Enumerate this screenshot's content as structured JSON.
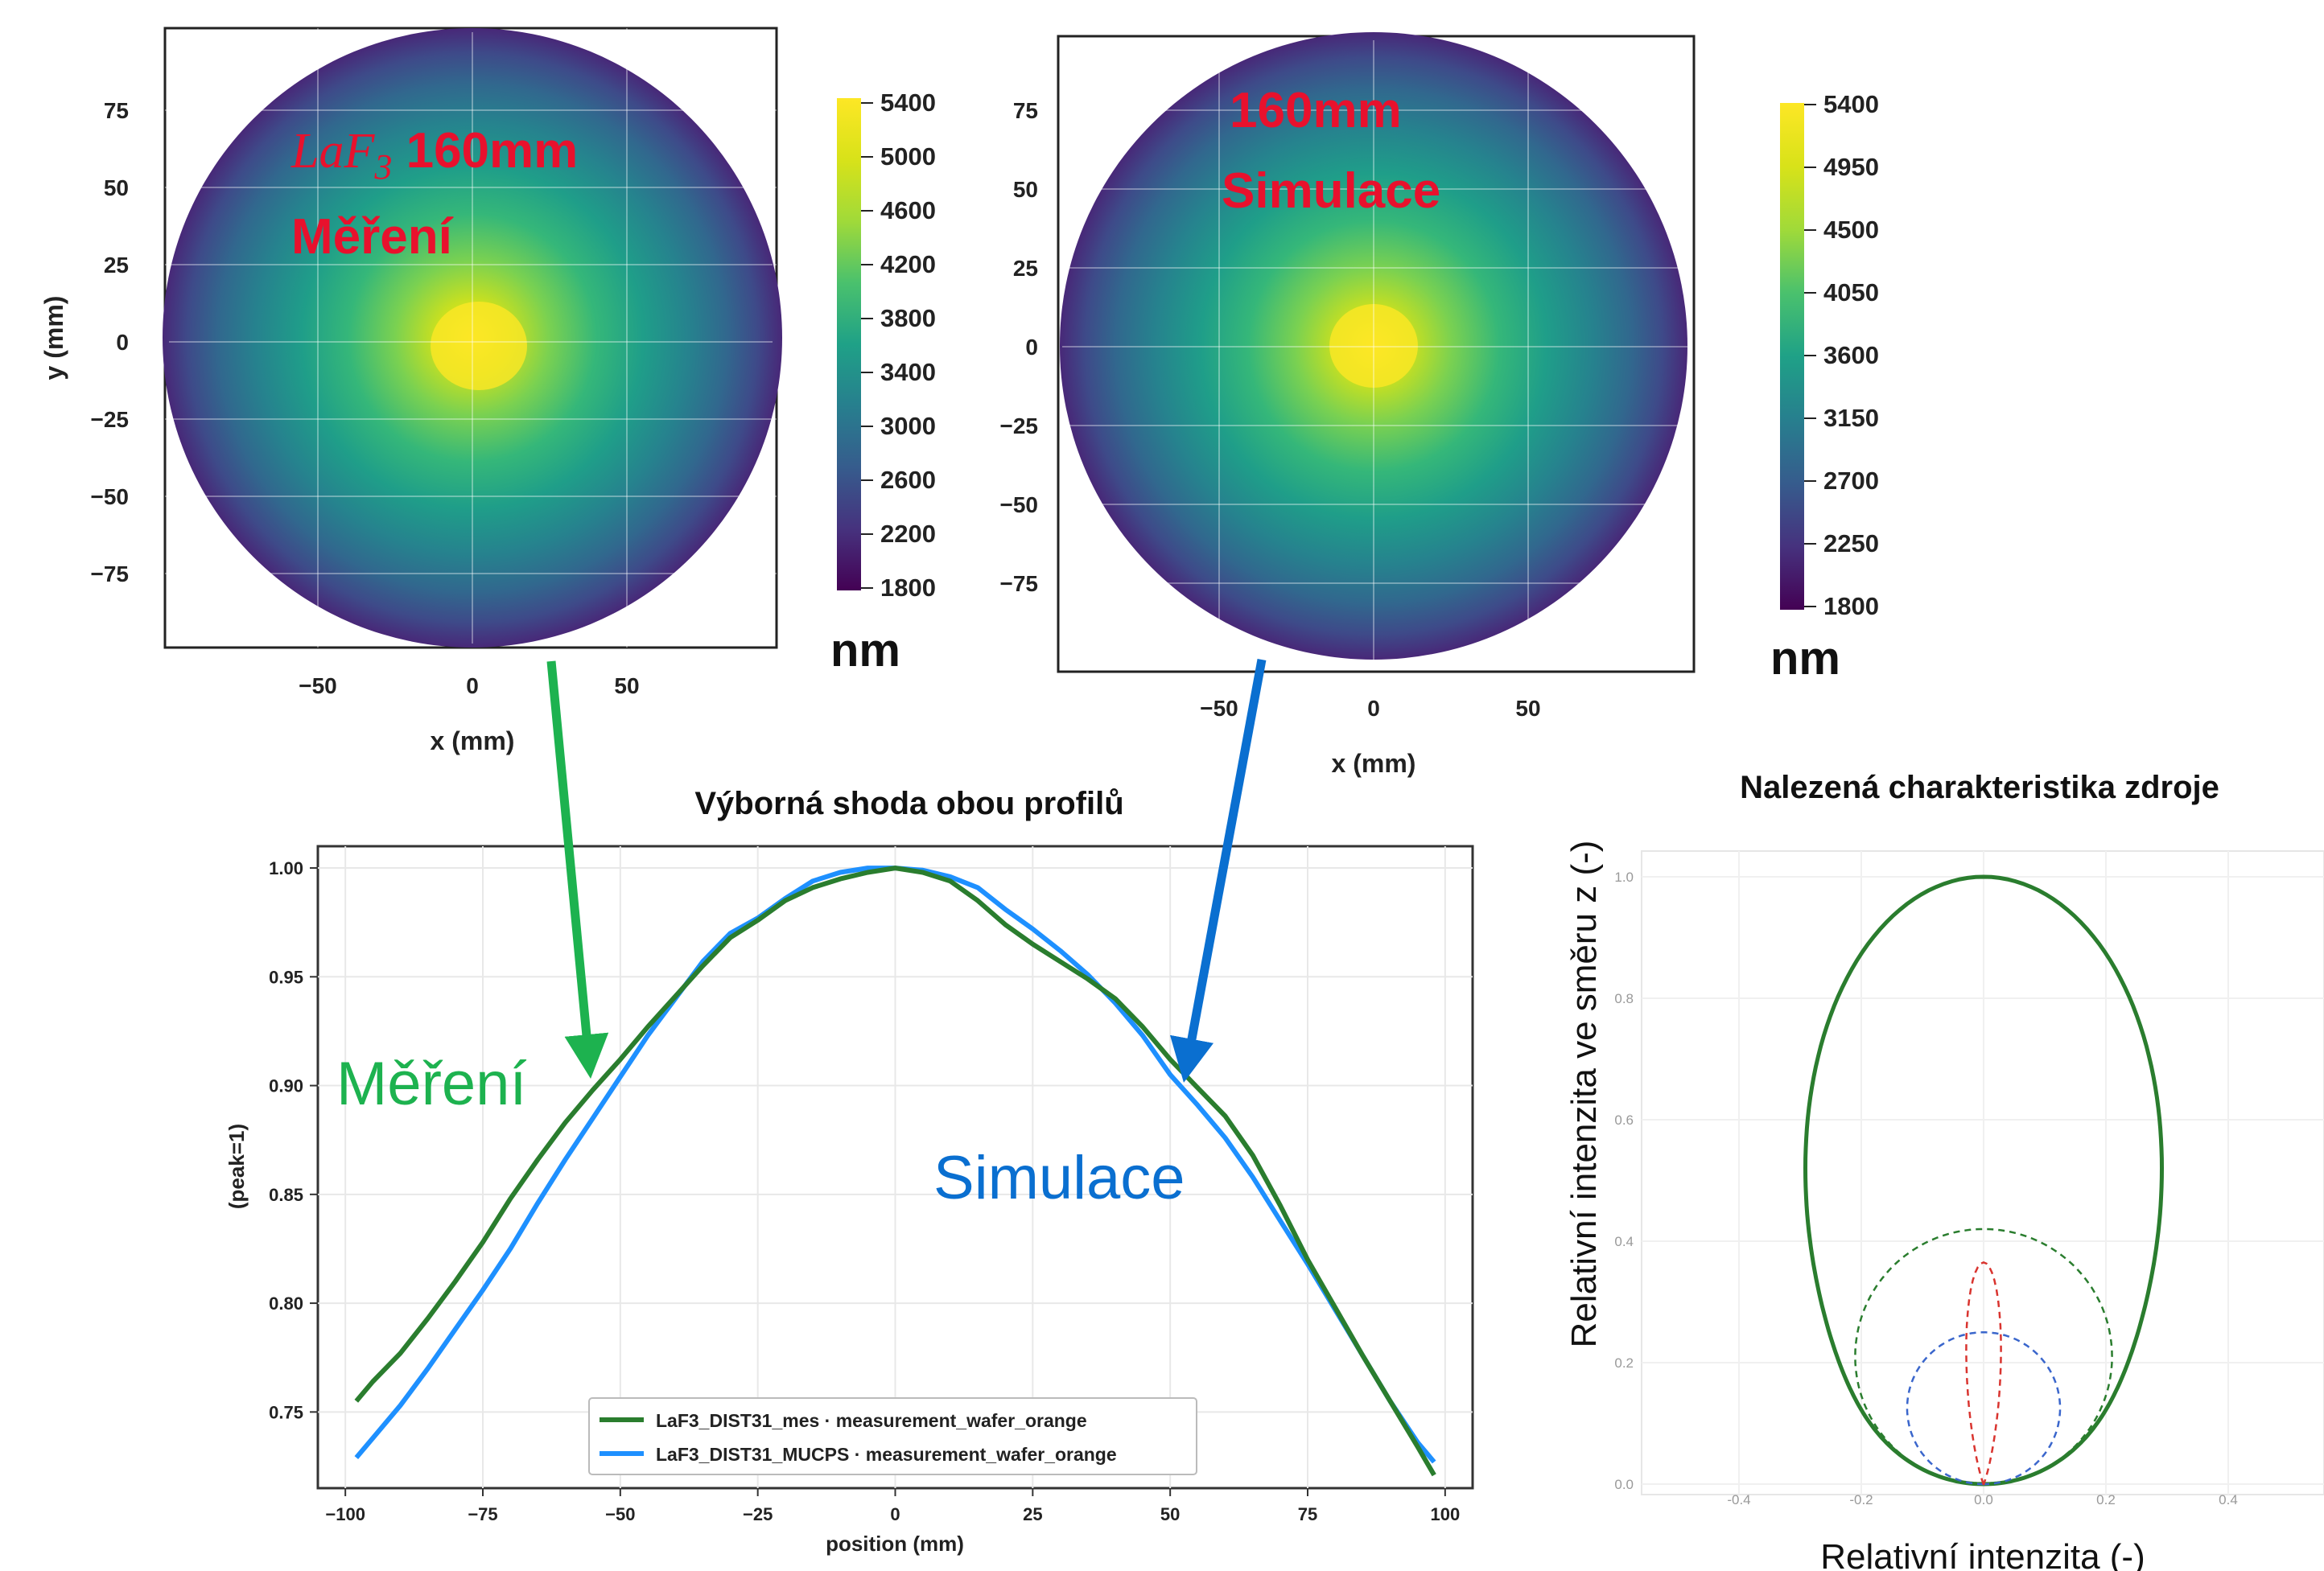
{
  "colors": {
    "red": "#e8112d",
    "green": "#1db24f",
    "blue": "#0a6fd0",
    "measure_line": "#2a7d2e",
    "sim_line": "#1e90ff",
    "dark": "#1f7a33"
  },
  "maps": {
    "left": {
      "title_italic": "LaF",
      "title_sub": "3",
      "title_rest": " 160mm",
      "title_line2": "Měření",
      "ylabel": "y (mm)",
      "xlabel": "x (mm)",
      "colorbar_unit": "nm",
      "xticks": [
        "−50",
        "0",
        "50"
      ],
      "yticks": [
        "75",
        "50",
        "25",
        "0",
        "−25",
        "−50",
        "−75"
      ],
      "colorbar_ticks": [
        "5400",
        "5000",
        "4600",
        "4200",
        "3800",
        "3400",
        "3000",
        "2600",
        "2200",
        "1800"
      ]
    },
    "right": {
      "title_line1": "160mm",
      "title_line2": "Simulace",
      "xlabel": "x (mm)",
      "colorbar_unit": "nm",
      "xticks": [
        "−50",
        "0",
        "50"
      ],
      "yticks": [
        "75",
        "50",
        "25",
        "0",
        "−25",
        "−50",
        "−75"
      ],
      "colorbar_ticks": [
        "5400",
        "4950",
        "4500",
        "4050",
        "3600",
        "3150",
        "2700",
        "2250",
        "1800"
      ]
    }
  },
  "profile": {
    "heading": "Výborná shoda obou profilů",
    "ylabel": "(peak=1)",
    "xlabel": "position (mm)",
    "annotation_measure": "Měření",
    "annotation_sim": "Simulace"
  },
  "polar": {
    "heading": "Nalezená charakteristika zdroje",
    "ylabel": "Relativní intenzita ve směru z (-)",
    "xlabel": "Relativní intenzita (-)"
  },
  "chart_data": [
    {
      "type": "heatmap",
      "name": "measurement map",
      "xlabel": "x (mm)",
      "ylabel": "y (mm)",
      "xlim": [
        -100,
        100
      ],
      "ylim": [
        -100,
        100
      ],
      "colormap": "viridis",
      "color_range": [
        1800,
        5400
      ],
      "peak_center": [
        5,
        -2
      ],
      "colorbar_unit": "nm"
    },
    {
      "type": "heatmap",
      "name": "simulation map",
      "xlabel": "x (mm)",
      "xlim": [
        -100,
        100
      ],
      "ylim": [
        -100,
        100
      ],
      "colormap": "viridis",
      "color_range": [
        1800,
        5400
      ],
      "peak_center": [
        0,
        0
      ],
      "colorbar_unit": "nm"
    },
    {
      "type": "line",
      "xlabel": "position (mm)",
      "ylabel": "(peak=1)",
      "xlim": [
        -105,
        105
      ],
      "ylim": [
        0.715,
        1.01
      ],
      "xticks": [
        -100,
        -75,
        -50,
        -25,
        0,
        25,
        50,
        75,
        100
      ],
      "yticks": [
        0.75,
        0.8,
        0.85,
        0.9,
        0.95,
        1.0
      ],
      "legend_position": "lower-center",
      "series": [
        {
          "name": "LaF3_DIST31_mes · measurement_wafer_orange",
          "color": "#2a7d2e",
          "x": [
            -98,
            -95,
            -90,
            -85,
            -80,
            -75,
            -70,
            -65,
            -60,
            -55,
            -50,
            -45,
            -40,
            -35,
            -30,
            -25,
            -20,
            -15,
            -10,
            -5,
            0,
            5,
            10,
            15,
            20,
            25,
            30,
            35,
            40,
            45,
            50,
            55,
            60,
            65,
            70,
            75,
            80,
            85,
            90,
            95,
            98
          ],
          "y": [
            0.755,
            0.764,
            0.777,
            0.793,
            0.81,
            0.828,
            0.848,
            0.866,
            0.883,
            0.898,
            0.912,
            0.927,
            0.941,
            0.955,
            0.968,
            0.976,
            0.985,
            0.991,
            0.995,
            0.998,
            1.0,
            0.998,
            0.994,
            0.985,
            0.974,
            0.965,
            0.957,
            0.949,
            0.94,
            0.927,
            0.912,
            0.899,
            0.886,
            0.868,
            0.845,
            0.82,
            0.798,
            0.776,
            0.755,
            0.734,
            0.721
          ]
        },
        {
          "name": "LaF3_DIST31_MUCPS · measurement_wafer_orange",
          "color": "#1e90ff",
          "x": [
            -98,
            -95,
            -90,
            -85,
            -80,
            -75,
            -70,
            -65,
            -60,
            -55,
            -50,
            -45,
            -40,
            -35,
            -30,
            -25,
            -20,
            -15,
            -10,
            -5,
            0,
            5,
            10,
            15,
            20,
            25,
            30,
            35,
            40,
            45,
            50,
            55,
            60,
            65,
            70,
            75,
            80,
            85,
            90,
            95,
            98
          ],
          "y": [
            0.729,
            0.738,
            0.753,
            0.77,
            0.788,
            0.806,
            0.825,
            0.846,
            0.866,
            0.885,
            0.904,
            0.923,
            0.94,
            0.957,
            0.97,
            0.977,
            0.986,
            0.994,
            0.998,
            1.0,
            1.0,
            0.999,
            0.996,
            0.991,
            0.981,
            0.972,
            0.962,
            0.951,
            0.938,
            0.923,
            0.905,
            0.891,
            0.876,
            0.858,
            0.838,
            0.818,
            0.797,
            0.776,
            0.755,
            0.736,
            0.727
          ]
        }
      ]
    },
    {
      "type": "line",
      "name": "source characteristic",
      "xlim": [
        -0.55,
        0.55
      ],
      "ylim": [
        0,
        1.05
      ],
      "xticks": [
        -0.4,
        -0.2,
        0.0,
        0.2,
        0.4
      ],
      "yticks": [
        0.0,
        0.2,
        0.4,
        0.6,
        0.8,
        1.0
      ],
      "xtick_labels": [
        "-0.4",
        "-0.2",
        "0.0",
        "0.2",
        "0.4"
      ],
      "ytick_labels": [
        "0.0",
        "0.2",
        "0.4",
        "0.6",
        "0.8",
        "1.0"
      ],
      "curves": [
        {
          "shape": "total",
          "style": "solid",
          "color": "#2a7d2e"
        },
        {
          "shape": "circle",
          "style": "dashed",
          "color": "#2a7d2e",
          "radius": 0.21
        },
        {
          "shape": "circle",
          "style": "dashed",
          "color": "#3a66cc",
          "radius": 0.125
        },
        {
          "shape": "lobe",
          "style": "dashed",
          "color": "#d9342f",
          "height": 0.365,
          "halfwidth": 0.025
        }
      ]
    }
  ]
}
